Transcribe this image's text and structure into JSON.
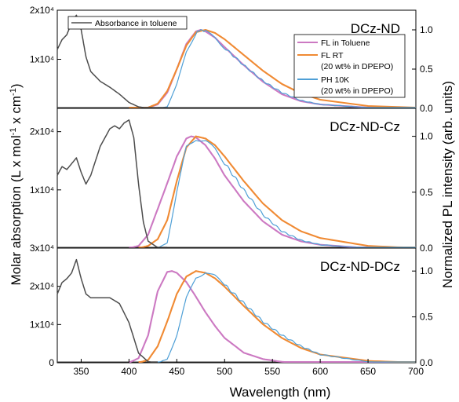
{
  "chart_data": {
    "type": "line",
    "xlabel": "Wavelength (nm)",
    "ylabel_left": "Molar absorption (L x mol-1 x cm-1)",
    "ylabel_right": "Normalized PL intensity (arb. units)",
    "xlim": [
      325,
      700
    ],
    "x_ticks": [
      "350",
      "400",
      "450",
      "500",
      "550",
      "600",
      "650",
      "700"
    ],
    "legend": {
      "absorbance": "Absorbance in toluene",
      "fl_toluene": "FL in Toluene",
      "fl_rt": "FL RT",
      "fl_rt_note": "(20 wt% in DPEPO)",
      "ph_10k": "PH 10K",
      "ph_10k_note": "(20 wt% in DPEPO)"
    },
    "colors": {
      "absorbance": "#4d4d4d",
      "fl_toluene": "#cc79c2",
      "fl_rt": "#f08a33",
      "ph_10k": "#4e9fd6"
    },
    "panels": [
      {
        "label": "DCz-ND",
        "left_ylim": [
          0,
          20000
        ],
        "left_ticks": [
          {
            "text": "1x10⁴",
            "value": 10000
          },
          {
            "text": "2x10⁴",
            "value": 20000
          }
        ],
        "right_ticks": [
          "0.0",
          "0.5",
          "1.0"
        ],
        "absorbance": {
          "x": [
            325,
            330,
            335,
            340,
            345,
            350,
            355,
            360,
            370,
            380,
            390,
            400,
            410,
            420,
            430,
            440
          ],
          "y": [
            12000,
            14000,
            15000,
            17500,
            19000,
            16000,
            10500,
            7500,
            5500,
            4300,
            2900,
            1200,
            300,
            50,
            0,
            0
          ]
        },
        "fl_toluene": {
          "x": [
            410,
            420,
            430,
            440,
            450,
            460,
            470,
            475,
            480,
            490,
            500,
            520,
            540,
            560,
            580,
            600,
            650,
            700
          ],
          "y": [
            0,
            0.01,
            0.05,
            0.2,
            0.5,
            0.82,
            0.98,
            1.0,
            0.98,
            0.9,
            0.78,
            0.55,
            0.34,
            0.18,
            0.09,
            0.05,
            0.01,
            0
          ]
        },
        "fl_rt": {
          "x": [
            400,
            420,
            430,
            440,
            450,
            460,
            470,
            480,
            490,
            500,
            520,
            540,
            560,
            580,
            600,
            650,
            700
          ],
          "y": [
            0,
            0.01,
            0.06,
            0.22,
            0.5,
            0.8,
            0.97,
            1.0,
            0.96,
            0.88,
            0.68,
            0.48,
            0.31,
            0.19,
            0.11,
            0.03,
            0.01
          ]
        },
        "ph_10k": {
          "x": [
            430,
            440,
            450,
            460,
            470,
            475,
            480,
            490,
            500,
            520,
            540,
            560,
            580,
            600,
            650,
            700
          ],
          "y": [
            0,
            0.02,
            0.3,
            0.72,
            0.96,
            1.0,
            0.98,
            0.9,
            0.77,
            0.55,
            0.35,
            0.2,
            0.1,
            0.05,
            0.01,
            0
          ]
        }
      },
      {
        "label": "DCz-ND-Cz",
        "left_ylim": [
          0,
          24000
        ],
        "left_ticks": [
          {
            "text": "1x10⁴",
            "value": 10000
          },
          {
            "text": "2x10⁴",
            "value": 20000
          }
        ],
        "right_ticks": [
          "0.0",
          "0.5",
          "1.0"
        ],
        "absorbance": {
          "x": [
            325,
            330,
            335,
            340,
            345,
            350,
            355,
            360,
            370,
            380,
            385,
            390,
            395,
            400,
            405,
            410,
            415,
            420,
            430,
            440
          ],
          "y": [
            12500,
            14000,
            13500,
            14500,
            15500,
            13000,
            11000,
            12500,
            17500,
            20500,
            21000,
            20500,
            21500,
            22000,
            19000,
            11000,
            4500,
            1200,
            100,
            0
          ]
        },
        "fl_toluene": {
          "x": [
            400,
            410,
            420,
            430,
            440,
            450,
            460,
            465,
            470,
            480,
            490,
            500,
            520,
            540,
            560,
            580,
            600,
            650,
            700
          ],
          "y": [
            0,
            0.02,
            0.12,
            0.35,
            0.58,
            0.82,
            0.98,
            1.0,
            0.99,
            0.92,
            0.8,
            0.65,
            0.42,
            0.24,
            0.12,
            0.06,
            0.03,
            0,
            0
          ]
        },
        "fl_rt": {
          "x": [
            410,
            420,
            430,
            440,
            450,
            460,
            470,
            480,
            490,
            500,
            520,
            540,
            560,
            580,
            600,
            650,
            700
          ],
          "y": [
            0,
            0.02,
            0.08,
            0.25,
            0.6,
            0.9,
            1.0,
            0.98,
            0.92,
            0.82,
            0.6,
            0.4,
            0.25,
            0.15,
            0.09,
            0.02,
            0
          ]
        },
        "ph_10k": {
          "x": [
            430,
            440,
            450,
            460,
            470,
            480,
            490,
            500,
            520,
            540,
            560,
            580,
            600,
            650,
            700
          ],
          "y": [
            0,
            0.05,
            0.5,
            0.9,
            0.98,
            0.96,
            0.88,
            0.76,
            0.52,
            0.3,
            0.15,
            0.07,
            0.03,
            0,
            0
          ]
        }
      },
      {
        "label": "DCz-ND-DCz",
        "left_ylim": [
          0,
          30000
        ],
        "left_ticks": [
          {
            "text": "0",
            "value": 0
          },
          {
            "text": "1x10⁴",
            "value": 10000
          },
          {
            "text": "2x10⁴",
            "value": 20000
          },
          {
            "text": "3x10⁴",
            "value": 30000
          }
        ],
        "right_ticks": [
          "0.0",
          "0.5",
          "1.0"
        ],
        "absorbance": {
          "x": [
            325,
            330,
            335,
            340,
            345,
            350,
            355,
            360,
            370,
            380,
            390,
            400,
            410,
            420,
            430
          ],
          "y": [
            18000,
            21000,
            22000,
            23500,
            27000,
            22000,
            18000,
            17000,
            17000,
            17000,
            15500,
            10500,
            2500,
            300,
            0
          ]
        },
        "fl_toluene": {
          "x": [
            400,
            410,
            420,
            430,
            440,
            445,
            450,
            460,
            470,
            480,
            490,
            500,
            520,
            540,
            560,
            580,
            600,
            650,
            700
          ],
          "y": [
            0,
            0.05,
            0.3,
            0.78,
            0.99,
            1.0,
            0.98,
            0.88,
            0.72,
            0.55,
            0.4,
            0.27,
            0.11,
            0.04,
            0.01,
            0,
            0,
            0,
            0
          ]
        },
        "fl_rt": {
          "x": [
            410,
            420,
            430,
            440,
            450,
            460,
            470,
            480,
            490,
            500,
            520,
            540,
            560,
            580,
            600,
            650,
            700
          ],
          "y": [
            0,
            0.03,
            0.18,
            0.45,
            0.75,
            0.94,
            1.0,
            0.98,
            0.92,
            0.83,
            0.62,
            0.42,
            0.27,
            0.16,
            0.09,
            0.02,
            0
          ]
        },
        "ph_10k": {
          "x": [
            430,
            440,
            450,
            460,
            470,
            480,
            490,
            500,
            520,
            540,
            560,
            580,
            600,
            650,
            700
          ],
          "y": [
            0,
            0.04,
            0.3,
            0.7,
            0.93,
            0.99,
            0.94,
            0.85,
            0.65,
            0.45,
            0.3,
            0.18,
            0.09,
            0.01,
            0
          ]
        }
      }
    ]
  }
}
